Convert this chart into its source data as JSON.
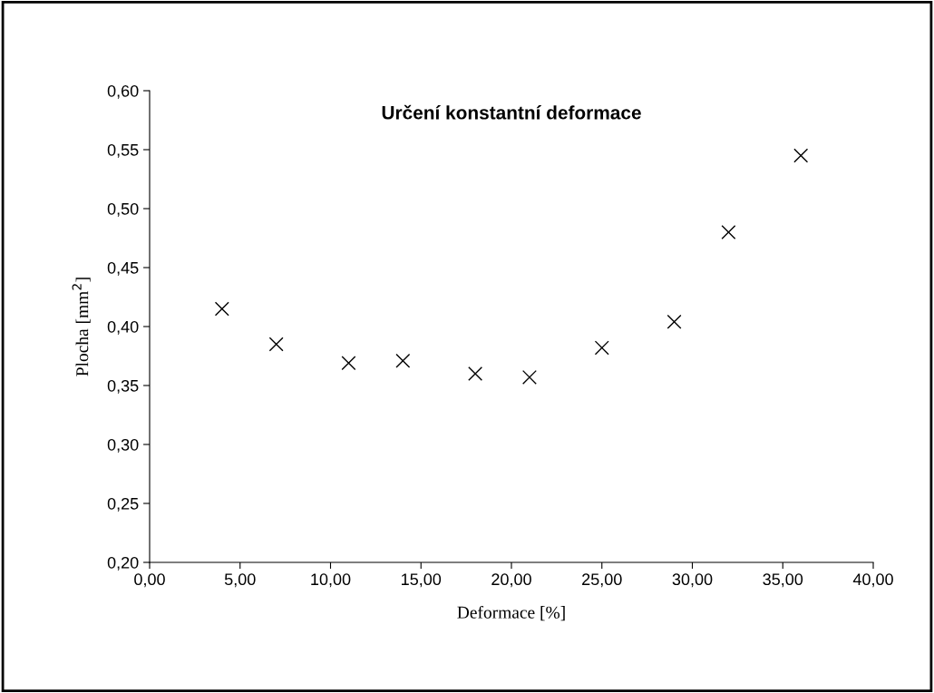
{
  "chart_data": {
    "type": "scatter",
    "title": "Určení konstantní deformace",
    "xlabel": "Deformace [%]",
    "ylabel": "Plocha [mm$^{2}$]",
    "x": [
      4,
      7,
      11,
      14,
      18,
      21,
      25,
      29,
      32,
      36
    ],
    "series": [
      {
        "color": "#000000",
        "values": [
          0.415,
          0.385,
          0.369,
          0.371,
          0.36,
          0.357,
          0.382,
          0.404,
          0.48,
          0.545
        ]
      }
    ],
    "marker": "cross",
    "grid": false,
    "legend": false,
    "xlim": [
      0,
      40
    ],
    "ylim": [
      0.2,
      0.6
    ],
    "xticks": [
      {
        "value": 0,
        "label": "0,00"
      },
      {
        "value": 5,
        "label": "5,00"
      },
      {
        "value": 10,
        "label": "10,00"
      },
      {
        "value": 15,
        "label": "15,00"
      },
      {
        "value": 20,
        "label": "20,00"
      },
      {
        "value": 25,
        "label": "25,00"
      },
      {
        "value": 30,
        "label": "30,00"
      },
      {
        "value": 35,
        "label": "35,00"
      },
      {
        "value": 40,
        "label": "40,00"
      }
    ],
    "yticks": [
      {
        "value": 0.2,
        "label": "0,20"
      },
      {
        "value": 0.25,
        "label": "0,25"
      },
      {
        "value": 0.3,
        "label": "0,30"
      },
      {
        "value": 0.35,
        "label": "0,35"
      },
      {
        "value": 0.4,
        "label": "0,40"
      },
      {
        "value": 0.45,
        "label": "0,45"
      },
      {
        "value": 0.5,
        "label": "0,50"
      },
      {
        "value": 0.55,
        "label": "0,55"
      },
      {
        "value": 0.6,
        "label": "0,60"
      }
    ]
  }
}
